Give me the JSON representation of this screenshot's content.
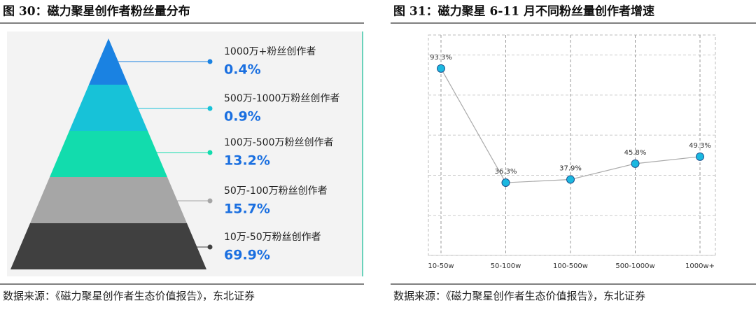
{
  "chart_data": [
    {
      "type": "pyramid",
      "title": "图 30：磁力聚星创作者粉丝量分布",
      "categories": [
        "1000万+粉丝创作者",
        "500万-1000万粉丝创作者",
        "100万-500万粉丝创作者",
        "50万-100万粉丝创作者",
        "10万-50万粉丝创作者"
      ],
      "values": [
        0.4,
        0.9,
        13.2,
        15.7,
        69.9
      ],
      "value_labels": [
        "0.4%",
        "0.9%",
        "13.2%",
        "15.7%",
        "69.9%"
      ],
      "colors": [
        "#1a82e2",
        "#17c2d8",
        "#12dcad",
        "#a6a6a6",
        "#404040"
      ],
      "source": "数据来源：《磁力聚星创作者生态价值报告》，东北证券"
    },
    {
      "type": "line",
      "title": "图 31：磁力聚星 6-11 月不同粉丝量创作者增速",
      "categories": [
        "10-50w",
        "50-100w",
        "100-500w",
        "500-1000w",
        "1000w+"
      ],
      "values": [
        93.3,
        36.3,
        37.9,
        45.8,
        49.3
      ],
      "value_labels": [
        "93.3%",
        "36.3%",
        "37.9%",
        "45.8%",
        "49.3%"
      ],
      "color": "#1bb8e0",
      "ylim": [
        0,
        110
      ],
      "yticks": [
        0,
        20,
        40,
        60,
        80,
        100
      ],
      "grid": true,
      "y_tick_labels": false,
      "source": "数据来源：《磁力聚星创作者生态价值报告》，东北证券"
    }
  ]
}
